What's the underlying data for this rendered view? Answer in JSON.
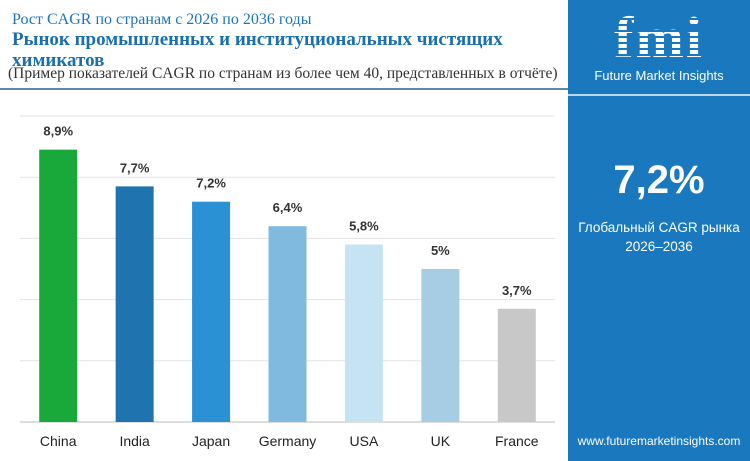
{
  "header": {
    "subtitle": "Рост CAGR по странам с 2026 по 2036 годы",
    "title": "Рынок промышленных и институциональных чистящих химикатов",
    "note": "(Пример показателей CAGR по странам из более чем 40, представленных в отчёте)"
  },
  "panel": {
    "logo_text": "fmi",
    "brand": "Future Market Insights",
    "global_cagr": "7,2%",
    "label_line1": "Глобальный CAGR рынка",
    "label_line2": "2026–2036",
    "url": "www.futuremarketinsights.com",
    "bg_color": "#1a78bf"
  },
  "chart_data": {
    "type": "bar",
    "categories": [
      "China",
      "India",
      "Japan",
      "Germany",
      "USA",
      "UK",
      "France"
    ],
    "values": [
      8.9,
      7.7,
      7.2,
      6.4,
      5.8,
      5.0,
      3.7
    ],
    "data_labels": [
      "8,9%",
      "7,7%",
      "7,2%",
      "6,4%",
      "5,8%",
      "5%",
      "3,7%"
    ],
    "colors": [
      "#19a83a",
      "#1f73ae",
      "#2b91d5",
      "#80badf",
      "#c6e3f4",
      "#a7cde5",
      "#c8c8c8"
    ],
    "ylim": [
      0,
      10
    ],
    "grid": true,
    "title": "",
    "xlabel": "",
    "ylabel": ""
  }
}
